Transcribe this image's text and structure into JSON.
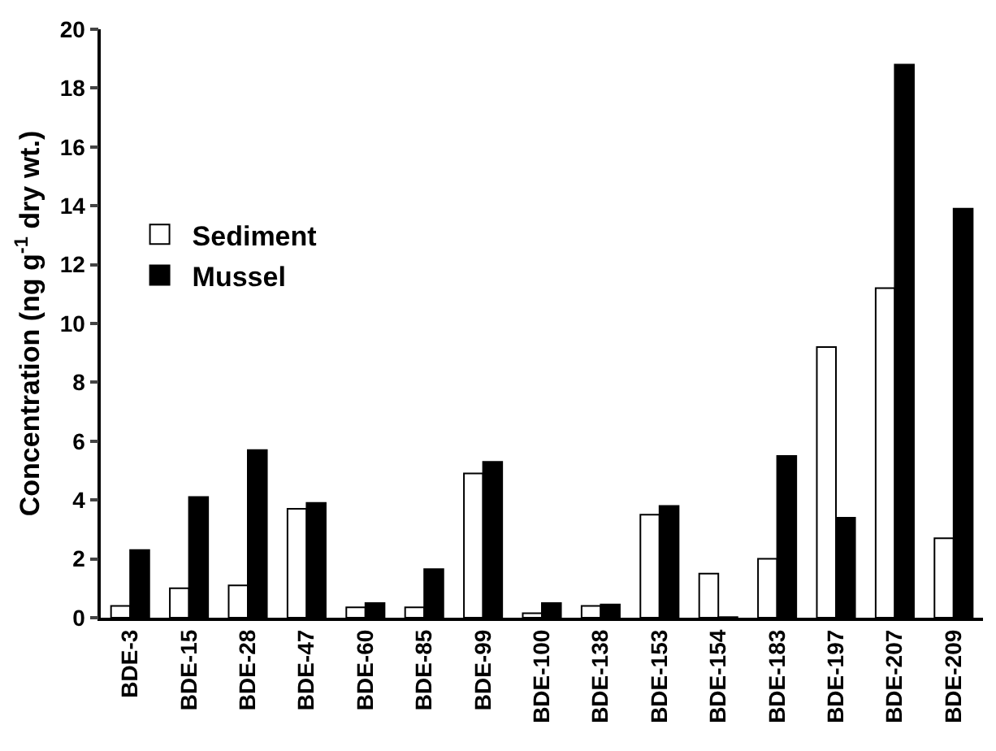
{
  "chart_data": {
    "type": "bar",
    "ylabel": "Concentration (ng g$^{-1}$ dry wt.)",
    "categories": [
      "BDE-3",
      "BDE-15",
      "BDE-28",
      "BDE-47",
      "BDE-60",
      "BDE-85",
      "BDE-99",
      "BDE-100",
      "BDE-138",
      "BDE-153",
      "BDE-154",
      "BDE-183",
      "BDE-197",
      "BDE-207",
      "BDE-209"
    ],
    "series": [
      {
        "name": "Sediment",
        "color": "#ffffff",
        "values": [
          0.4,
          1.0,
          1.1,
          3.7,
          0.35,
          0.35,
          4.9,
          0.15,
          0.4,
          3.5,
          1.5,
          2.0,
          9.2,
          11.2,
          2.7
        ]
      },
      {
        "name": "Mussel",
        "color": "#000000",
        "values": [
          2.3,
          4.1,
          5.7,
          3.9,
          0.5,
          1.65,
          5.3,
          0.5,
          0.45,
          3.8,
          0.02,
          5.5,
          3.4,
          18.8,
          13.9
        ]
      }
    ],
    "ylim": [
      0,
      20
    ],
    "yticks": [
      0,
      2,
      4,
      6,
      8,
      10,
      12,
      14,
      16,
      18,
      20
    ],
    "grid": false,
    "legend": "top left"
  }
}
